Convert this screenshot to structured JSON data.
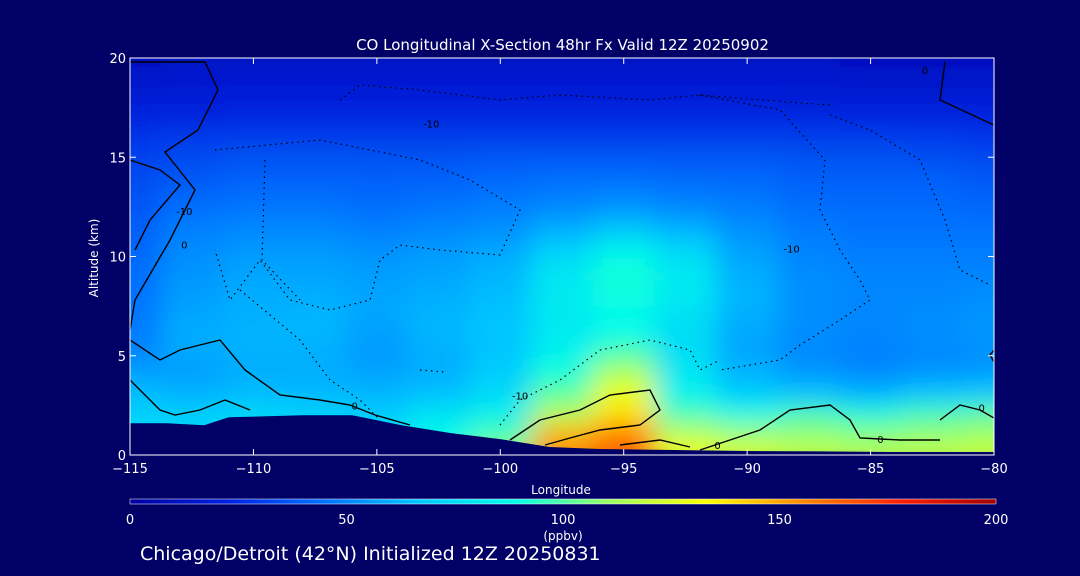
{
  "title": "CO Longitudinal X-Section 48hr  Fx Valid 12Z 20250902",
  "footer": "Chicago/Detroit (42°N) Initialized 12Z 20250831",
  "chart_data": {
    "type": "heatmap",
    "xlabel": "Longitude",
    "ylabel": "Altitude (km)",
    "xlim": [
      -115,
      -80
    ],
    "ylim": [
      0,
      20
    ],
    "xticks": [
      -115,
      -110,
      -105,
      -100,
      -95,
      -90,
      -85,
      -80
    ],
    "yticks": [
      0,
      5,
      10,
      15,
      20
    ],
    "colorbar": {
      "label": "(ppbv)",
      "range": [
        0,
        200
      ],
      "ticks": [
        0,
        50,
        100,
        150,
        200
      ],
      "colors": [
        "#0000a0",
        "#0020e0",
        "#0070ff",
        "#00c8ff",
        "#00ffe8",
        "#a0ff60",
        "#ffff00",
        "#ff8800",
        "#ff2000",
        "#a00000"
      ]
    },
    "contour_labels": [
      {
        "text": "-10",
        "lon": -112.8,
        "alt": 12.1
      },
      {
        "text": "0",
        "lon": -112.8,
        "alt": 10.4
      },
      {
        "text": "-10",
        "lon": -102.8,
        "alt": 16.5
      },
      {
        "text": "-10",
        "lon": -88.2,
        "alt": 10.2
      },
      {
        "text": "0",
        "lon": -82.8,
        "alt": 19.2
      },
      {
        "text": "0",
        "lon": -105.9,
        "alt": 2.3
      },
      {
        "text": "-10",
        "lon": -99.2,
        "alt": 2.8
      },
      {
        "text": "0",
        "lon": -91.2,
        "alt": 0.3
      },
      {
        "text": "0",
        "lon": -84.6,
        "alt": 0.6
      },
      {
        "text": "0",
        "lon": -80.5,
        "alt": 2.2
      }
    ],
    "concentration_grid": {
      "lon": [
        -115,
        -112.5,
        -110,
        -107.5,
        -105,
        -102.5,
        -100,
        -97.5,
        -95,
        -92.5,
        -90,
        -87.5,
        -85,
        -82.5,
        -80
      ],
      "alt": [
        0,
        1,
        2,
        3,
        4,
        5,
        6,
        7,
        8,
        9,
        10,
        11,
        12,
        13,
        14,
        15,
        16,
        17,
        18,
        19,
        20
      ],
      "values": [
        [
          72,
          74,
          74,
          74,
          72,
          90,
          110,
          155,
          165,
          130,
          125,
          120,
          118,
          120,
          122
        ],
        [
          72,
          74,
          74,
          74,
          72,
          88,
          98,
          150,
          160,
          120,
          112,
          110,
          108,
          110,
          112
        ],
        [
          72,
          70,
          74,
          72,
          70,
          78,
          84,
          118,
          140,
          98,
          90,
          98,
          92,
          98,
          102
        ],
        [
          65,
          62,
          64,
          63,
          62,
          66,
          74,
          102,
          130,
          84,
          70,
          66,
          62,
          68,
          70
        ],
        [
          58,
          56,
          60,
          60,
          58,
          60,
          70,
          92,
          118,
          80,
          62,
          56,
          52,
          55,
          56
        ],
        [
          50,
          58,
          60,
          60,
          55,
          60,
          66,
          85,
          100,
          76,
          58,
          50,
          48,
          50,
          52
        ],
        [
          48,
          60,
          62,
          62,
          56,
          62,
          66,
          80,
          88,
          74,
          58,
          52,
          50,
          52,
          54
        ],
        [
          46,
          58,
          60,
          62,
          58,
          62,
          66,
          80,
          86,
          76,
          60,
          52,
          50,
          52,
          54
        ],
        [
          45,
          56,
          60,
          60,
          58,
          60,
          64,
          80,
          90,
          80,
          62,
          52,
          50,
          50,
          52
        ],
        [
          44,
          54,
          58,
          58,
          56,
          58,
          62,
          80,
          92,
          80,
          60,
          52,
          50,
          50,
          50
        ],
        [
          42,
          52,
          56,
          56,
          54,
          56,
          60,
          74,
          88,
          76,
          58,
          50,
          48,
          48,
          48
        ],
        [
          40,
          50,
          52,
          52,
          50,
          52,
          54,
          64,
          74,
          66,
          54,
          48,
          46,
          46,
          46
        ],
        [
          38,
          46,
          48,
          48,
          46,
          48,
          50,
          54,
          58,
          54,
          50,
          46,
          44,
          44,
          44
        ],
        [
          36,
          42,
          44,
          44,
          42,
          44,
          46,
          48,
          50,
          48,
          46,
          42,
          42,
          42,
          40
        ],
        [
          34,
          38,
          40,
          40,
          40,
          40,
          42,
          44,
          44,
          42,
          42,
          40,
          40,
          40,
          38
        ],
        [
          32,
          34,
          36,
          36,
          36,
          36,
          38,
          38,
          38,
          38,
          38,
          36,
          36,
          35,
          34
        ],
        [
          28,
          30,
          30,
          30,
          30,
          30,
          30,
          30,
          30,
          30,
          30,
          30,
          30,
          30,
          28
        ],
        [
          22,
          22,
          24,
          24,
          24,
          24,
          24,
          24,
          24,
          24,
          24,
          24,
          22,
          22,
          22
        ],
        [
          18,
          18,
          20,
          20,
          20,
          20,
          20,
          20,
          20,
          20,
          20,
          18,
          18,
          18,
          18
        ],
        [
          14,
          16,
          16,
          16,
          16,
          16,
          16,
          16,
          16,
          16,
          16,
          16,
          14,
          14,
          14
        ],
        [
          12,
          14,
          14,
          14,
          14,
          14,
          14,
          14,
          14,
          14,
          14,
          14,
          12,
          12,
          12
        ]
      ]
    },
    "terrain_km": [
      {
        "lon": -115,
        "alt": 1.6
      },
      {
        "lon": -113.5,
        "alt": 1.6
      },
      {
        "lon": -112,
        "alt": 1.5
      },
      {
        "lon": -111,
        "alt": 1.9
      },
      {
        "lon": -108,
        "alt": 2.0
      },
      {
        "lon": -106,
        "alt": 2.0
      },
      {
        "lon": -104,
        "alt": 1.5
      },
      {
        "lon": -102,
        "alt": 1.1
      },
      {
        "lon": -100,
        "alt": 0.8
      },
      {
        "lon": -98,
        "alt": 0.4
      },
      {
        "lon": -96,
        "alt": 0.3
      },
      {
        "lon": -93,
        "alt": 0.25
      },
      {
        "lon": -90,
        "alt": 0.2
      },
      {
        "lon": -87,
        "alt": 0.18
      },
      {
        "lon": -84,
        "alt": 0.15
      },
      {
        "lon": -80,
        "alt": 0.15
      }
    ]
  }
}
